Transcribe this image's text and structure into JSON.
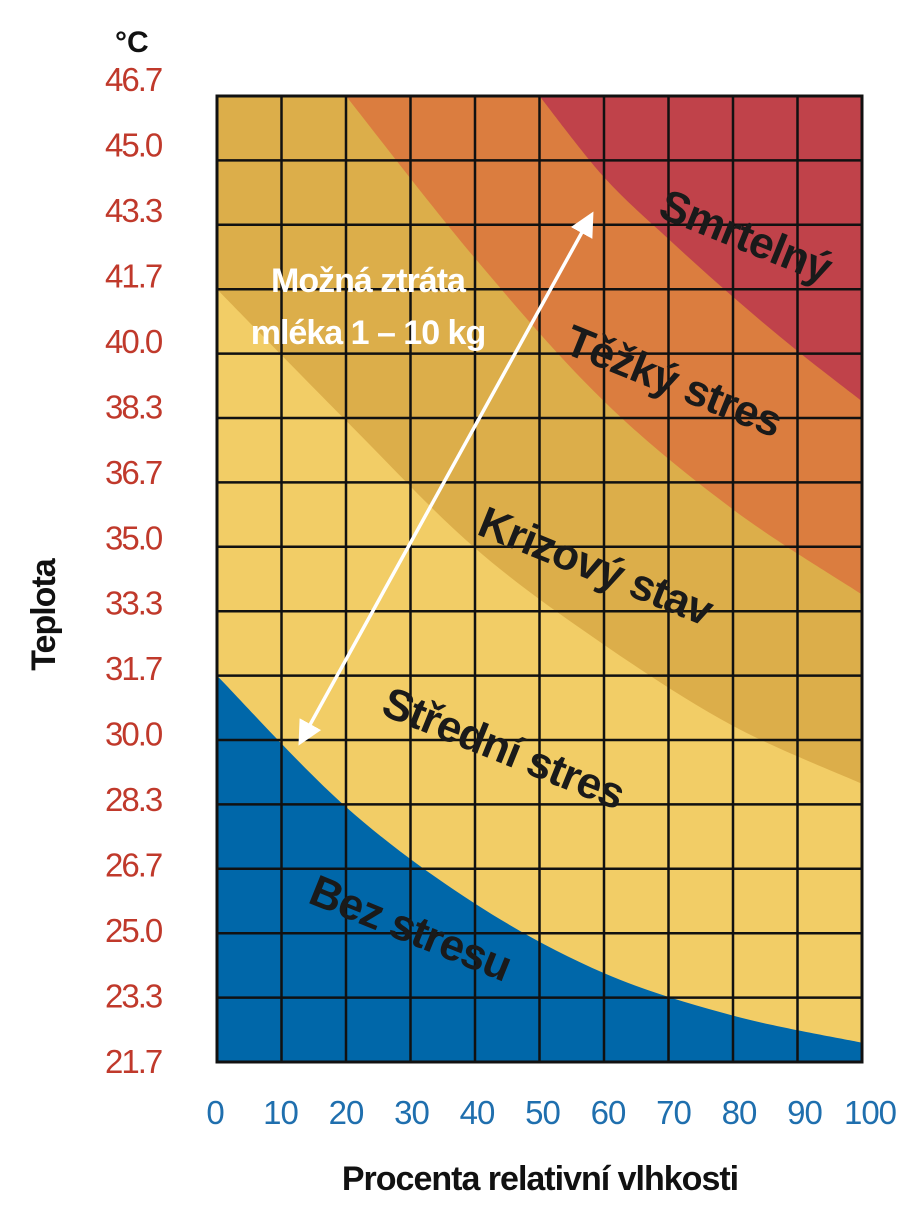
{
  "chart_data": {
    "type": "heatmap",
    "title": "",
    "unit_label": "°C",
    "ylabel": "Teplota",
    "xlabel": "Procenta relativní vlhkosti",
    "x_ticks": [
      "0",
      "10",
      "20",
      "30",
      "40",
      "50",
      "60",
      "70",
      "80",
      "90",
      "100"
    ],
    "y_ticks": [
      "21.7",
      "23.3",
      "25.0",
      "26.7",
      "28.3",
      "30.0",
      "31.7",
      "33.3",
      "35.0",
      "36.7",
      "38.3",
      "40.0",
      "41.7",
      "43.3",
      "45.0",
      "46.7"
    ],
    "xlim": [
      0,
      100
    ],
    "ylim": [
      21.7,
      46.7
    ],
    "grid": true,
    "zones": [
      {
        "name": "Bez stresu",
        "color": "#0067a9",
        "upper_boundary": [
          [
            0,
            31.7
          ],
          [
            20,
            28.3
          ],
          [
            40,
            25.8
          ],
          [
            60,
            24.0
          ],
          [
            80,
            22.9
          ],
          [
            100,
            22.2
          ]
        ]
      },
      {
        "name": "Střední stres",
        "color": "#f2cd66",
        "upper_boundary": [
          [
            0,
            41.7
          ],
          [
            20,
            38.3
          ],
          [
            40,
            35.0
          ],
          [
            60,
            32.5
          ],
          [
            80,
            30.4
          ],
          [
            100,
            28.9
          ]
        ]
      },
      {
        "name": "Krizový stav",
        "color": "#dcae4a",
        "upper_boundary": [
          [
            20,
            46.7
          ],
          [
            40,
            42.5
          ],
          [
            60,
            38.8
          ],
          [
            80,
            36.0
          ],
          [
            100,
            33.8
          ]
        ]
      },
      {
        "name": "Těžký stres",
        "color": "#db7d3f",
        "upper_boundary": [
          [
            50,
            46.7
          ],
          [
            60,
            44.6
          ],
          [
            70,
            43.0
          ],
          [
            80,
            41.5
          ],
          [
            90,
            40.1
          ],
          [
            100,
            38.8
          ]
        ]
      },
      {
        "name": "Smrtelný",
        "color": "#c0424a",
        "upper_boundary": [
          [
            100,
            46.7
          ]
        ]
      }
    ],
    "annotation": {
      "text_lines": [
        "Možná ztráta",
        "mléka 1 – 10 kg"
      ],
      "arrow_from": [
        13,
        30.0
      ],
      "arrow_to": [
        58,
        43.6
      ]
    }
  }
}
